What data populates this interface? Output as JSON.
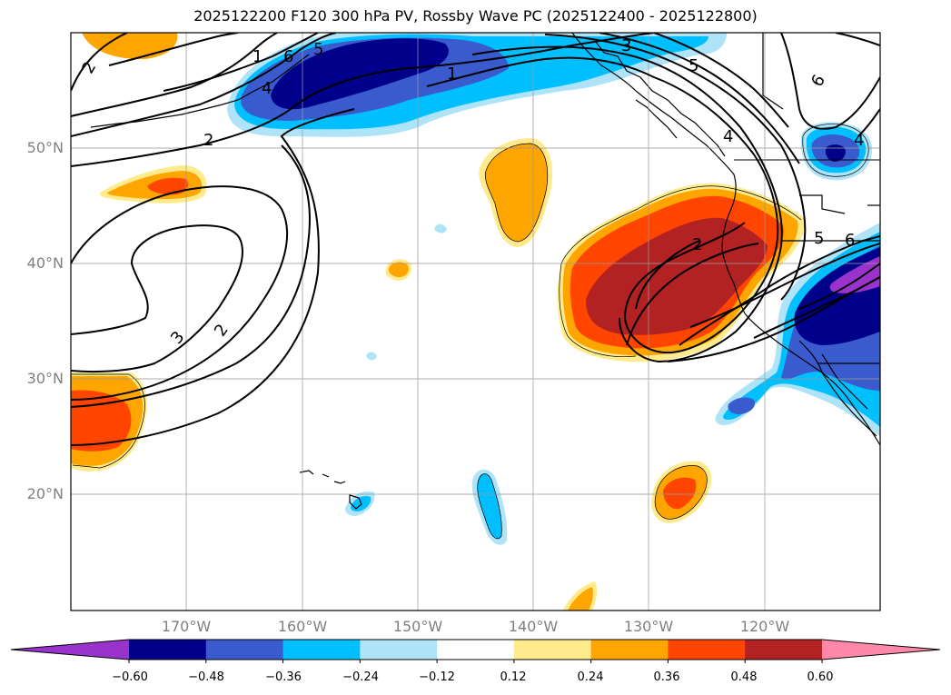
{
  "title": "2025122200 F120 300 hPa PV, Rossby Wave PC (2025122400 - 2025122800)",
  "lat_labels": [
    "50°N",
    "40°N",
    "30°N",
    "20°N"
  ],
  "lon_labels": [
    "170°W",
    "160°W",
    "150°W",
    "140°W",
    "130°W",
    "120°W"
  ],
  "colorbar": {
    "ticks": [
      "−0.60",
      "−0.48",
      "−0.36",
      "−0.24",
      "−0.12",
      "0.12",
      "0.24",
      "0.36",
      "0.48",
      "0.60"
    ],
    "colors": [
      "#9933cc",
      "#00008b",
      "#3a5bcd",
      "#00bfff",
      "#afe3f8",
      "#ffffff",
      "#ffea8c",
      "#ffa500",
      "#ff4500",
      "#b22222",
      "#ff88aa"
    ]
  },
  "contour_labels": [
    "2",
    "2",
    "1",
    "6",
    "4",
    "5",
    "1",
    "2",
    "3",
    "2",
    "3",
    "5",
    "4",
    "5",
    "6",
    "4",
    "6"
  ]
}
